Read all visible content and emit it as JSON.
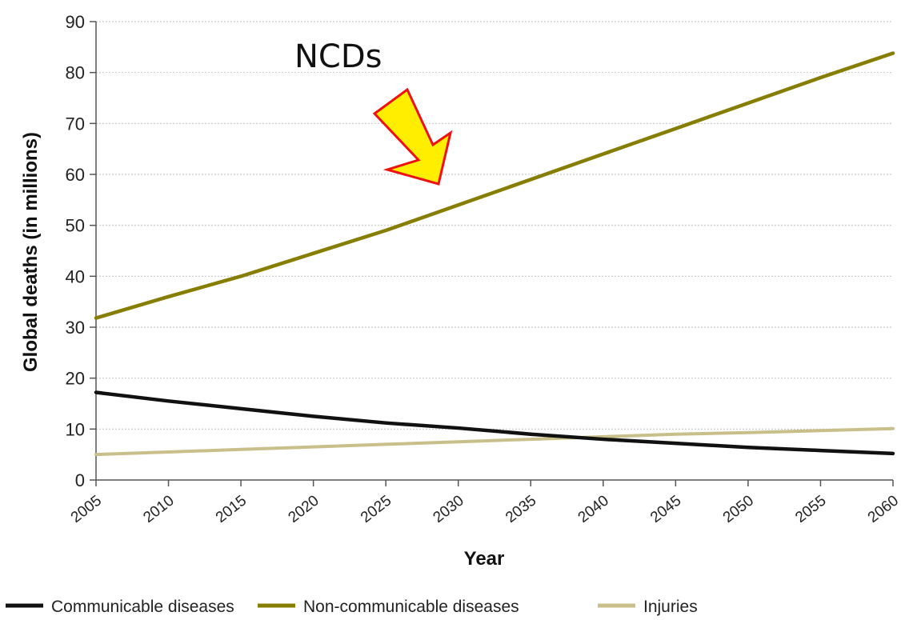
{
  "chart_data": {
    "type": "line",
    "xlabel": "Year",
    "ylabel": "Global deaths (in millions)",
    "x": [
      2005,
      2010,
      2015,
      2020,
      2025,
      2030,
      2035,
      2040,
      2045,
      2050,
      2055,
      2060
    ],
    "xlim": [
      2005,
      2060
    ],
    "ylim": [
      0,
      90
    ],
    "yticks": [
      0,
      10,
      20,
      30,
      40,
      50,
      60,
      70,
      80,
      90
    ],
    "grid": true,
    "legend_position": "bottom",
    "annotation": {
      "text": "NCDs",
      "arrow_color": "#ffee00",
      "arrow_outline": "#ee1111"
    },
    "series": [
      {
        "name": "Communicable diseases",
        "color": "#111111",
        "values": [
          17.2,
          15.5,
          14.0,
          12.5,
          11.2,
          10.2,
          9.0,
          8.0,
          7.2,
          6.4,
          5.8,
          5.2
        ]
      },
      {
        "name": "Non-communicable diseases",
        "color": "#857e00",
        "values": [
          31.8,
          36.0,
          40.0,
          44.5,
          49.0,
          54.0,
          59.0,
          64.0,
          69.0,
          74.0,
          79.0,
          83.8
        ]
      },
      {
        "name": "Injuries",
        "color": "#c8bf8a",
        "values": [
          5.0,
          5.5,
          6.0,
          6.5,
          7.0,
          7.5,
          8.0,
          8.5,
          9.0,
          9.3,
          9.7,
          10.1
        ]
      }
    ]
  }
}
